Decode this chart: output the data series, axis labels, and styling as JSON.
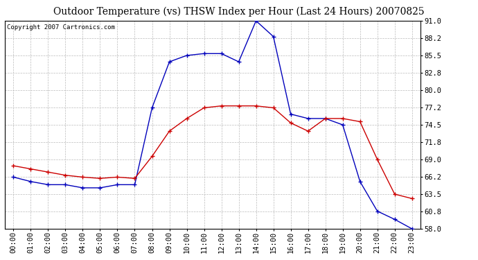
{
  "title": "Outdoor Temperature (vs) THSW Index per Hour (Last 24 Hours) 20070825",
  "copyright_text": "Copyright 2007 Cartronics.com",
  "hours": [
    "00:00",
    "01:00",
    "02:00",
    "03:00",
    "04:00",
    "05:00",
    "06:00",
    "07:00",
    "08:00",
    "09:00",
    "10:00",
    "11:00",
    "12:00",
    "13:00",
    "14:00",
    "15:00",
    "16:00",
    "17:00",
    "18:00",
    "19:00",
    "20:00",
    "21:00",
    "22:00",
    "23:00"
  ],
  "thsw_blue": [
    66.2,
    65.5,
    65.0,
    65.0,
    64.5,
    64.5,
    65.0,
    65.0,
    77.2,
    84.5,
    85.5,
    85.8,
    85.8,
    84.5,
    91.0,
    88.5,
    76.2,
    75.5,
    75.5,
    74.5,
    65.5,
    60.8,
    59.5,
    58.0
  ],
  "temp_red": [
    68.0,
    67.5,
    67.0,
    66.5,
    66.2,
    66.0,
    66.2,
    66.0,
    69.5,
    73.5,
    75.5,
    77.2,
    77.5,
    77.5,
    77.5,
    77.2,
    74.8,
    73.5,
    75.5,
    75.5,
    75.0,
    69.0,
    63.5,
    62.8
  ],
  "ylim_min": 58.0,
  "ylim_max": 91.0,
  "yticks": [
    58.0,
    60.8,
    63.5,
    66.2,
    69.0,
    71.8,
    74.5,
    77.2,
    80.0,
    82.8,
    85.5,
    88.2,
    91.0
  ],
  "bg_color": "#ffffff",
  "plot_bg_color": "#ffffff",
  "grid_color": "#bbbbbb",
  "blue_color": "#0000bb",
  "red_color": "#cc0000",
  "title_fontsize": 10,
  "tick_fontsize": 7.5,
  "copyright_fontsize": 6.5
}
